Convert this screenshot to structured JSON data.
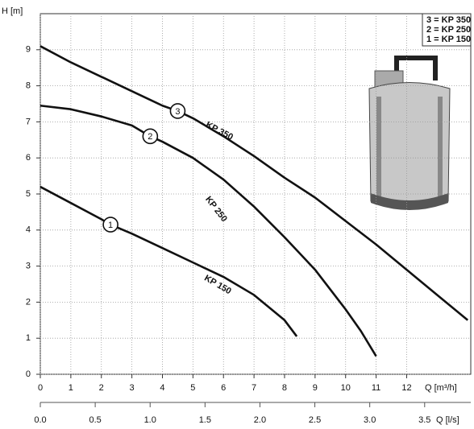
{
  "chart_data": {
    "type": "line",
    "ylabel": "H [m]",
    "xlabel": "Q [m³/h]",
    "x2label": "Q [l/s]",
    "legend": [
      "3 = KP 350",
      "2 = KP 250",
      "1 = KP 150"
    ],
    "xlim": [
      0,
      14.1
    ],
    "xticks": [
      0,
      1,
      2,
      3,
      4,
      5,
      6,
      7,
      8,
      9,
      10,
      11,
      12
    ],
    "ylim": [
      0,
      10
    ],
    "yticks": [
      0,
      1,
      2,
      3,
      4,
      5,
      6,
      7,
      8,
      9
    ],
    "x2lim": [
      0,
      3.92
    ],
    "x2ticks": [
      {
        "value": 0,
        "label": "0.0"
      },
      0.5,
      {
        "value": 1,
        "label": "1.0"
      },
      1.5,
      {
        "value": 2,
        "label": "2.0"
      },
      2.5,
      {
        "value": 3,
        "label": "3.0"
      },
      3.5
    ],
    "grid": true,
    "series": [
      {
        "name": "KP 350",
        "marker": "3",
        "color": "#111111",
        "x": [
          0,
          1,
          2,
          3,
          4,
          4.5,
          5,
          6,
          7,
          8,
          9,
          10,
          11,
          12,
          13,
          14
        ],
        "values": [
          9.1,
          8.65,
          8.25,
          7.85,
          7.45,
          7.3,
          7.1,
          6.6,
          6.05,
          5.45,
          4.9,
          4.25,
          3.6,
          2.9,
          2.2,
          1.5
        ]
      },
      {
        "name": "KP 250",
        "marker": "2",
        "color": "#111111",
        "x": [
          0,
          1,
          2,
          3,
          3.6,
          4,
          5,
          6,
          7,
          8,
          9,
          10,
          10.5,
          11
        ],
        "values": [
          7.45,
          7.35,
          7.15,
          6.9,
          6.6,
          6.45,
          6.0,
          5.4,
          4.65,
          3.8,
          2.9,
          1.8,
          1.2,
          0.5
        ]
      },
      {
        "name": "KP 150",
        "marker": "1",
        "color": "#111111",
        "x": [
          0,
          1,
          2,
          2.3,
          3,
          4,
          5,
          6,
          7,
          8,
          8.4
        ],
        "values": [
          5.2,
          4.75,
          4.3,
          4.15,
          3.9,
          3.5,
          3.1,
          2.7,
          2.2,
          1.5,
          1.05
        ]
      }
    ]
  }
}
